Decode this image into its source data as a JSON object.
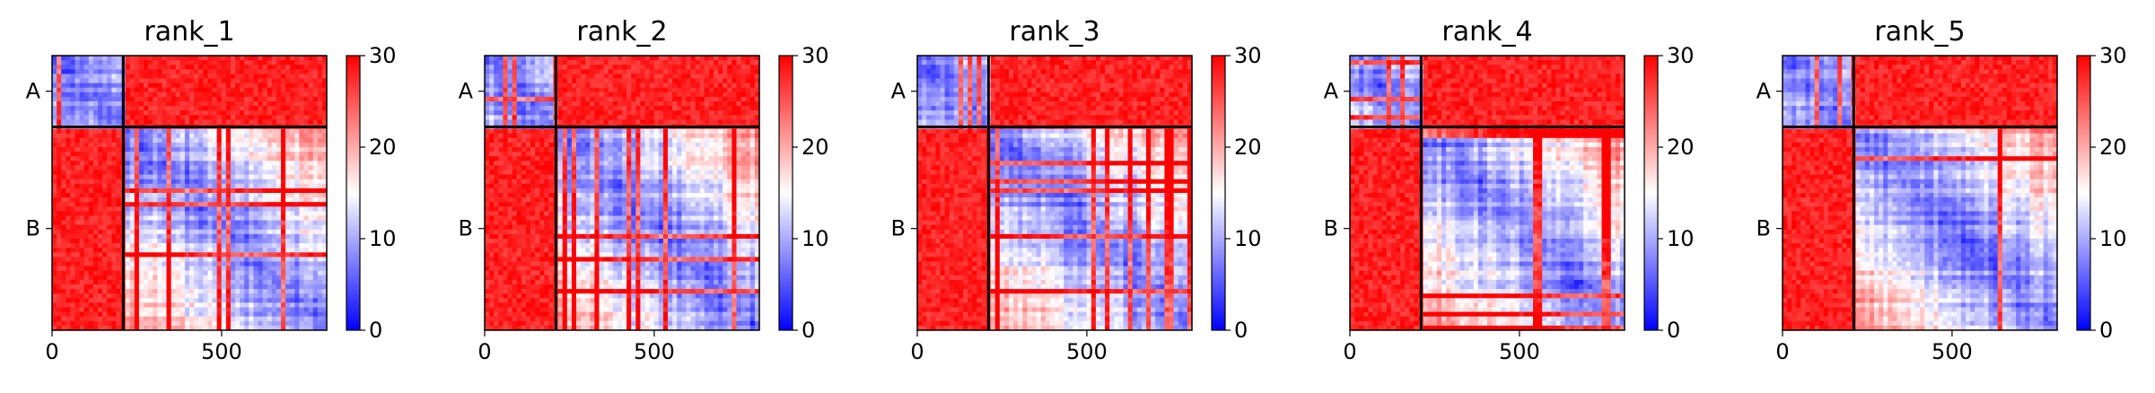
{
  "chart_data": [
    {
      "type": "heatmap",
      "title": "rank_1",
      "x_ticks": [
        {
          "value": 0,
          "label": "0"
        },
        {
          "value": 500,
          "label": "500"
        }
      ],
      "y_ticks": [
        {
          "value": 105,
          "label": "A"
        },
        {
          "value": 510,
          "label": "B"
        }
      ],
      "xlim": [
        0,
        810
      ],
      "chain_boundary": 210,
      "colorbar": {
        "min": 0,
        "max": 30,
        "ticks": [
          0,
          10,
          20,
          30
        ],
        "colors": [
          "#0000ff",
          "#ffffff",
          "#ff0000"
        ]
      },
      "seed": 11
    },
    {
      "type": "heatmap",
      "title": "rank_2",
      "x_ticks": [
        {
          "value": 0,
          "label": "0"
        },
        {
          "value": 500,
          "label": "500"
        }
      ],
      "y_ticks": [
        {
          "value": 105,
          "label": "A"
        },
        {
          "value": 510,
          "label": "B"
        }
      ],
      "xlim": [
        0,
        810
      ],
      "chain_boundary": 210,
      "colorbar": {
        "min": 0,
        "max": 30,
        "ticks": [
          0,
          10,
          20,
          30
        ],
        "colors": [
          "#0000ff",
          "#ffffff",
          "#ff0000"
        ]
      },
      "seed": 23
    },
    {
      "type": "heatmap",
      "title": "rank_3",
      "x_ticks": [
        {
          "value": 0,
          "label": "0"
        },
        {
          "value": 500,
          "label": "500"
        }
      ],
      "y_ticks": [
        {
          "value": 105,
          "label": "A"
        },
        {
          "value": 510,
          "label": "B"
        }
      ],
      "xlim": [
        0,
        810
      ],
      "chain_boundary": 210,
      "colorbar": {
        "min": 0,
        "max": 30,
        "ticks": [
          0,
          10,
          20,
          30
        ],
        "colors": [
          "#0000ff",
          "#ffffff",
          "#ff0000"
        ]
      },
      "seed": 37
    },
    {
      "type": "heatmap",
      "title": "rank_4",
      "x_ticks": [
        {
          "value": 0,
          "label": "0"
        },
        {
          "value": 500,
          "label": "500"
        }
      ],
      "y_ticks": [
        {
          "value": 105,
          "label": "A"
        },
        {
          "value": 510,
          "label": "B"
        }
      ],
      "xlim": [
        0,
        810
      ],
      "chain_boundary": 210,
      "colorbar": {
        "min": 0,
        "max": 30,
        "ticks": [
          0,
          10,
          20,
          30
        ],
        "colors": [
          "#0000ff",
          "#ffffff",
          "#ff0000"
        ]
      },
      "seed": 41
    },
    {
      "type": "heatmap",
      "title": "rank_5",
      "x_ticks": [
        {
          "value": 0,
          "label": "0"
        },
        {
          "value": 500,
          "label": "500"
        }
      ],
      "y_ticks": [
        {
          "value": 105,
          "label": "A"
        },
        {
          "value": 510,
          "label": "B"
        }
      ],
      "xlim": [
        0,
        810
      ],
      "chain_boundary": 210,
      "colorbar": {
        "min": 0,
        "max": 30,
        "ticks": [
          0,
          10,
          20,
          30
        ],
        "colors": [
          "#0000ff",
          "#ffffff",
          "#ff0000"
        ]
      },
      "seed": 53
    }
  ]
}
